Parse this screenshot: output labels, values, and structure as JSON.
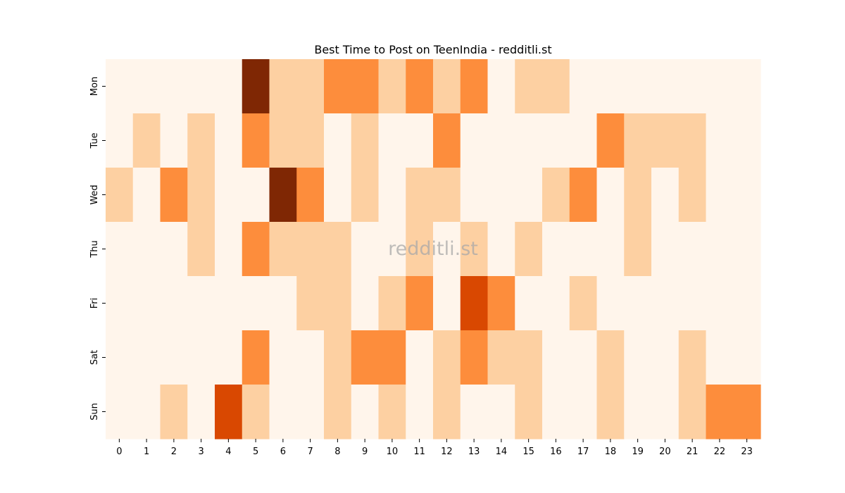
{
  "chart_data": {
    "type": "heatmap",
    "title": "Best Time to Post on TeenIndia - redditli.st",
    "watermark": "redditli.st",
    "x_labels": [
      "0",
      "1",
      "2",
      "3",
      "4",
      "5",
      "6",
      "7",
      "8",
      "9",
      "10",
      "11",
      "12",
      "13",
      "14",
      "15",
      "16",
      "17",
      "18",
      "19",
      "20",
      "21",
      "22",
      "23"
    ],
    "y_labels": [
      "Mon",
      "Tue",
      "Wed",
      "Thu",
      "Fri",
      "Sat",
      "Sun"
    ],
    "values": [
      [
        0,
        0,
        0,
        0,
        0,
        4,
        1,
        1,
        2,
        2,
        1,
        2,
        1,
        2,
        0,
        1,
        1,
        0,
        0,
        0,
        0,
        0,
        0,
        0
      ],
      [
        0,
        1,
        0,
        1,
        0,
        2,
        1,
        1,
        0,
        1,
        0,
        0,
        2,
        0,
        0,
        0,
        0,
        0,
        2,
        1,
        1,
        1,
        0,
        0
      ],
      [
        1,
        0,
        2,
        1,
        0,
        0,
        4,
        2,
        0,
        1,
        0,
        1,
        1,
        0,
        0,
        0,
        1,
        2,
        0,
        1,
        0,
        1,
        0,
        0
      ],
      [
        0,
        0,
        0,
        1,
        0,
        2,
        1,
        1,
        1,
        0,
        0,
        1,
        0,
        1,
        0,
        1,
        0,
        0,
        0,
        1,
        0,
        0,
        0,
        0
      ],
      [
        0,
        0,
        0,
        0,
        0,
        0,
        0,
        1,
        1,
        0,
        1,
        2,
        0,
        3,
        2,
        0,
        0,
        1,
        0,
        0,
        0,
        0,
        0,
        0
      ],
      [
        0,
        0,
        0,
        0,
        0,
        2,
        0,
        0,
        1,
        2,
        2,
        0,
        1,
        2,
        1,
        1,
        0,
        0,
        1,
        0,
        0,
        1,
        0,
        0
      ],
      [
        0,
        0,
        1,
        0,
        3,
        1,
        0,
        0,
        1,
        0,
        1,
        0,
        1,
        0,
        0,
        1,
        0,
        0,
        1,
        0,
        0,
        1,
        2,
        2
      ]
    ],
    "colormap": [
      "#fff5eb",
      "#fdd0a2",
      "#fd8d3c",
      "#d94801",
      "#7f2704"
    ],
    "colorbar": false,
    "grid": false
  }
}
